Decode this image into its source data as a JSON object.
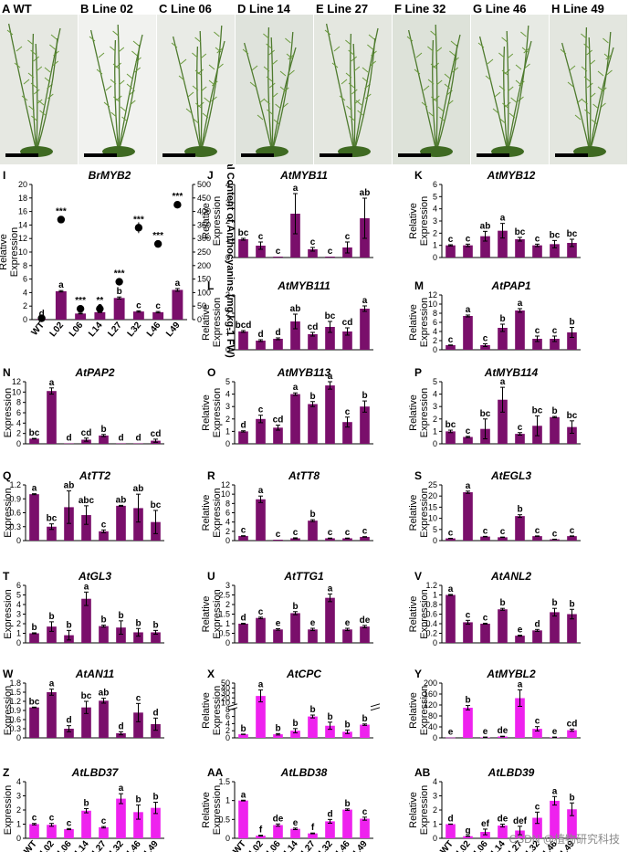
{
  "photos": [
    {
      "letter": "A",
      "label": "WT"
    },
    {
      "letter": "B",
      "label": "Line 02"
    },
    {
      "letter": "C",
      "label": "Line 06"
    },
    {
      "letter": "D",
      "label": "Line 14"
    },
    {
      "letter": "E",
      "label": "Line 27"
    },
    {
      "letter": "F",
      "label": "Line 32"
    },
    {
      "letter": "G",
      "label": "Line 46"
    },
    {
      "letter": "H",
      "label": "Line 49"
    }
  ],
  "colors": {
    "dark": "#7a0f6b",
    "pink": "#ee22ee",
    "accent": "#000000"
  },
  "lines": [
    "WT",
    "L02",
    "L06",
    "L14",
    "L27",
    "L32",
    "L46",
    "L49"
  ],
  "ylabel": "Relative Expression",
  "watermark": "CSDN @植物研究科技",
  "chart_data": [
    {
      "letter": "I",
      "type": "bar",
      "title": "BrMYB2",
      "color": "dark",
      "ymax": 20,
      "ticks": [
        0,
        2,
        4,
        6,
        8,
        10,
        12,
        14,
        16,
        18,
        20
      ],
      "values": [
        0.1,
        4.2,
        0.9,
        1.1,
        3.2,
        1.2,
        1.1,
        4.4
      ],
      "err": [
        0,
        0.1,
        0.05,
        0.05,
        0.15,
        0.1,
        0.1,
        0.2
      ],
      "letters": [
        "d",
        "a",
        "c",
        "c",
        "b",
        "c",
        "c",
        "a"
      ],
      "y2label": "Total Content of Anthocyanins (mg kg-1 FW)",
      "y2max": 500,
      "y2ticks": [
        0,
        50,
        100,
        150,
        200,
        250,
        300,
        350,
        400,
        450,
        500
      ],
      "antho": [
        5,
        370,
        40,
        40,
        140,
        340,
        280,
        425
      ],
      "antho_err": [
        0,
        8,
        0,
        0,
        0,
        20,
        10,
        10
      ],
      "stars": [
        "",
        "***",
        "***",
        "**",
        "***",
        "***",
        "***",
        "***"
      ],
      "axis_letters": "I"
    },
    {
      "letter": "J",
      "type": "bar",
      "title": "AtMYB11",
      "color": "dark",
      "ymax": 4,
      "ticks": [
        0,
        1,
        2,
        3,
        4
      ],
      "values": [
        1.0,
        0.65,
        0.05,
        2.4,
        0.45,
        0.05,
        0.55,
        2.15
      ],
      "err": [
        0.05,
        0.2,
        0,
        1.1,
        0.1,
        0,
        0.3,
        1.1
      ],
      "letters": [
        "bc",
        "c",
        "c",
        "a",
        "c",
        "c",
        "c",
        "ab"
      ]
    },
    {
      "letter": "K",
      "type": "bar",
      "title": "AtMYB12",
      "color": "dark",
      "ymax": 6,
      "ticks": [
        0,
        1,
        2,
        3,
        4,
        5,
        6
      ],
      "values": [
        1.0,
        1.0,
        1.75,
        2.2,
        1.5,
        1.0,
        1.1,
        1.2
      ],
      "err": [
        0.05,
        0.1,
        0.4,
        0.6,
        0.15,
        0.1,
        0.3,
        0.3
      ],
      "letters": [
        "c",
        "c",
        "ab",
        "a",
        "bc",
        "c",
        "bc",
        "bc"
      ]
    },
    {
      "letter": "L",
      "type": "bar",
      "title": "AtMYB111",
      "color": "dark",
      "ymax": 3,
      "ticks": [
        0,
        1,
        2,
        3
      ],
      "values": [
        1.0,
        0.5,
        0.6,
        1.55,
        0.85,
        1.25,
        1.0,
        2.25
      ],
      "err": [
        0.05,
        0.05,
        0.05,
        0.4,
        0.1,
        0.3,
        0.2,
        0.15
      ],
      "letters": [
        "bcd",
        "d",
        "d",
        "ab",
        "cd",
        "bc",
        "cd",
        "a"
      ]
    },
    {
      "letter": "M",
      "type": "bar",
      "title": "AtPAP1",
      "color": "dark",
      "ymax": 12,
      "ticks": [
        0,
        2,
        4,
        6,
        8,
        10,
        12
      ],
      "values": [
        1.0,
        7.4,
        1.0,
        4.8,
        8.6,
        2.4,
        2.4,
        3.8
      ],
      "err": [
        0.05,
        0.2,
        0.3,
        0.8,
        0.4,
        0.6,
        0.6,
        1.1
      ],
      "letters": [
        "c",
        "a",
        "c",
        "b",
        "a",
        "c",
        "c",
        "b"
      ]
    },
    {
      "letter": "N",
      "type": "bar",
      "title": "AtPAP2",
      "color": "dark",
      "ymax": 12,
      "ticks": [
        0,
        2,
        4,
        6,
        8,
        10,
        12
      ],
      "values": [
        1.0,
        10.2,
        0.1,
        0.8,
        1.6,
        0.1,
        0.1,
        0.6
      ],
      "err": [
        0.05,
        0.6,
        0,
        0.3,
        0.2,
        0,
        0,
        0.3
      ],
      "letters": [
        "bc",
        "a",
        "d",
        "cd",
        "b",
        "d",
        "d",
        "cd"
      ]
    },
    {
      "letter": "O",
      "type": "bar",
      "title": "AtMYB113",
      "color": "dark",
      "ymax": 5,
      "ticks": [
        0,
        1,
        2,
        3,
        4,
        5
      ],
      "values": [
        1.0,
        2.0,
        1.3,
        4.0,
        3.2,
        4.7,
        1.75,
        3.0
      ],
      "err": [
        0.05,
        0.3,
        0.2,
        0.1,
        0.2,
        0.3,
        0.4,
        0.45
      ],
      "letters": [
        "d",
        "c",
        "cd",
        "a",
        "b",
        "a",
        "c",
        "b"
      ]
    },
    {
      "letter": "P",
      "type": "bar",
      "title": "AtMYB114",
      "color": "dark",
      "ymax": 5,
      "ticks": [
        0,
        1,
        2,
        3,
        4,
        5
      ],
      "values": [
        1.0,
        0.55,
        1.2,
        3.55,
        0.8,
        1.45,
        2.15,
        1.35
      ],
      "err": [
        0.1,
        0.05,
        0.8,
        1.0,
        0.1,
        0.8,
        0.05,
        0.5
      ],
      "letters": [
        "bc",
        "c",
        "bc",
        "a",
        "c",
        "bc",
        "b",
        "bc"
      ]
    },
    {
      "letter": "Q",
      "type": "bar",
      "title": "AtTT2",
      "color": "dark",
      "ymax": 1.2,
      "ticks": [
        0,
        0.3,
        0.6,
        0.9,
        1.2
      ],
      "values": [
        1.0,
        0.3,
        0.72,
        0.55,
        0.2,
        0.75,
        0.7,
        0.4
      ],
      "err": [
        0.01,
        0.06,
        0.35,
        0.2,
        0.03,
        0.01,
        0.3,
        0.25
      ],
      "letters": [
        "a",
        "bc",
        "ab",
        "abc",
        "c",
        "ab",
        "ab",
        "bc"
      ],
      "dec": 1
    },
    {
      "letter": "R",
      "type": "bar",
      "title": "AtTT8",
      "color": "dark",
      "ymax": 12,
      "ticks": [
        0,
        2,
        4,
        6,
        8,
        10,
        12
      ],
      "values": [
        1.0,
        8.9,
        0.2,
        0.5,
        4.3,
        0.5,
        0.5,
        0.8
      ],
      "err": [
        0.05,
        0.7,
        0,
        0.1,
        0.2,
        0.05,
        0.05,
        0.05
      ],
      "letters": [
        "c",
        "a",
        "c",
        "c",
        "b",
        "c",
        "c",
        "c"
      ]
    },
    {
      "letter": "S",
      "type": "bar",
      "title": "AtEGL3",
      "color": "dark",
      "ymax": 25,
      "ticks": [
        0,
        5,
        10,
        15,
        20,
        25
      ],
      "values": [
        1.0,
        21.7,
        1.8,
        1.5,
        11.0,
        2.0,
        0.6,
        2.0
      ],
      "err": [
        0.05,
        0.5,
        0.1,
        0.1,
        0.6,
        0.1,
        0.05,
        0.1
      ],
      "letters": [
        "c",
        "a",
        "c",
        "c",
        "b",
        "c",
        "c",
        "c"
      ]
    },
    {
      "letter": "T",
      "type": "bar",
      "title": "AtGL3",
      "color": "dark",
      "ymax": 6,
      "ticks": [
        0,
        1,
        2,
        3,
        4,
        5,
        6
      ],
      "values": [
        1.0,
        1.7,
        0.8,
        4.6,
        1.75,
        1.6,
        1.1,
        1.1
      ],
      "err": [
        0.05,
        0.5,
        0.5,
        0.7,
        0.1,
        0.7,
        0.4,
        0.2
      ],
      "letters": [
        "b",
        "b",
        "b",
        "a",
        "b",
        "b",
        "b",
        "b"
      ]
    },
    {
      "letter": "U",
      "type": "bar",
      "title": "AtTTG1",
      "color": "dark",
      "ymax": 3,
      "ticks": [
        0,
        0.5,
        1,
        1.5,
        2,
        2.5,
        3
      ],
      "values": [
        1.0,
        1.3,
        0.7,
        1.55,
        0.7,
        2.35,
        0.7,
        0.85
      ],
      "err": [
        0.02,
        0.04,
        0.04,
        0.08,
        0.06,
        0.2,
        0.06,
        0.06
      ],
      "letters": [
        "d",
        "c",
        "e",
        "b",
        "e",
        "a",
        "e",
        "de"
      ],
      "dec": 1
    },
    {
      "letter": "V",
      "type": "bar",
      "title": "AtANL2",
      "color": "dark",
      "ymax": 1.2,
      "ticks": [
        0,
        0.2,
        0.4,
        0.6,
        0.8,
        1,
        1.2
      ],
      "values": [
        1.0,
        0.43,
        0.4,
        0.7,
        0.15,
        0.26,
        0.64,
        0.6
      ],
      "err": [
        0.01,
        0.04,
        0.01,
        0.02,
        0.01,
        0.02,
        0.08,
        0.1
      ],
      "letters": [
        "a",
        "c",
        "c",
        "b",
        "e",
        "d",
        "b",
        "b"
      ],
      "dec": 1
    },
    {
      "letter": "W",
      "type": "bar",
      "title": "AtAN11",
      "color": "dark",
      "ymax": 1.8,
      "ticks": [
        0,
        0.3,
        0.6,
        0.9,
        1.2,
        1.5,
        1.8
      ],
      "values": [
        1.0,
        1.5,
        0.3,
        1.0,
        1.22,
        0.15,
        0.83,
        0.45
      ],
      "err": [
        0.01,
        0.1,
        0.1,
        0.2,
        0.08,
        0.05,
        0.3,
        0.2
      ],
      "letters": [
        "bc",
        "a",
        "d",
        "bc",
        "ab",
        "d",
        "c",
        "d"
      ],
      "dec": 1
    },
    {
      "letter": "X",
      "type": "bar",
      "title": "AtCPC",
      "color": "pink",
      "ymax": 50,
      "broken": true,
      "lowmax": 8,
      "lowticks": [
        0,
        2,
        4,
        6,
        8
      ],
      "highticks": [
        10,
        20,
        30,
        40,
        50
      ],
      "values": [
        1.0,
        24,
        1.0,
        2.0,
        6.0,
        3.4,
        1.7,
        3.7
      ],
      "err": [
        0.05,
        12,
        0.2,
        0.6,
        0.4,
        1.0,
        0.5,
        0.2
      ],
      "letters": [
        "b",
        "a",
        "b",
        "b",
        "b",
        "b",
        "b",
        "b"
      ]
    },
    {
      "letter": "Y",
      "type": "bar",
      "title": "AtMYBL2",
      "color": "pink",
      "ymax": 200,
      "ticks": [
        0,
        40,
        80,
        120,
        160,
        200
      ],
      "values": [
        1.0,
        110,
        2,
        5,
        145,
        33,
        2,
        28
      ],
      "err": [
        0,
        8,
        1,
        1,
        30,
        8,
        1,
        4
      ],
      "letters": [
        "e",
        "b",
        "e",
        "de",
        "a",
        "c",
        "e",
        "cd"
      ]
    },
    {
      "letter": "Z",
      "type": "bar",
      "title": "AtLBD37",
      "color": "pink",
      "ymax": 4,
      "ticks": [
        0,
        1,
        2,
        3,
        4
      ],
      "values": [
        1.0,
        0.95,
        0.65,
        1.95,
        0.78,
        2.8,
        1.85,
        2.15
      ],
      "err": [
        0.05,
        0.1,
        0.04,
        0.15,
        0.05,
        0.35,
        0.5,
        0.4
      ],
      "letters": [
        "c",
        "c",
        "c",
        "b",
        "c",
        "a",
        "b",
        "b"
      ],
      "xt": true
    },
    {
      "letter": "AA",
      "type": "bar",
      "title": "AtLBD38",
      "color": "pink",
      "ymax": 1.5,
      "ticks": [
        0,
        0.5,
        1,
        1.5
      ],
      "values": [
        1.0,
        0.07,
        0.35,
        0.25,
        0.13,
        0.45,
        0.76,
        0.52
      ],
      "err": [
        0.01,
        0.01,
        0.03,
        0.02,
        0.01,
        0.05,
        0.02,
        0.04
      ],
      "letters": [
        "a",
        "f",
        "de",
        "e",
        "f",
        "d",
        "b",
        "c"
      ],
      "xt": true,
      "dec": 1
    },
    {
      "letter": "AB",
      "type": "bar",
      "title": "AtLBD39",
      "color": "pink",
      "ymax": 4,
      "ticks": [
        0,
        1,
        2,
        3,
        4
      ],
      "values": [
        1.0,
        0.15,
        0.45,
        0.9,
        0.55,
        1.45,
        2.65,
        2.05
      ],
      "err": [
        0.01,
        0.01,
        0.2,
        0.1,
        0.3,
        0.4,
        0.3,
        0.45
      ],
      "letters": [
        "d",
        "g",
        "ef",
        "de",
        "def",
        "c",
        "a",
        "b"
      ],
      "xt": true
    }
  ]
}
